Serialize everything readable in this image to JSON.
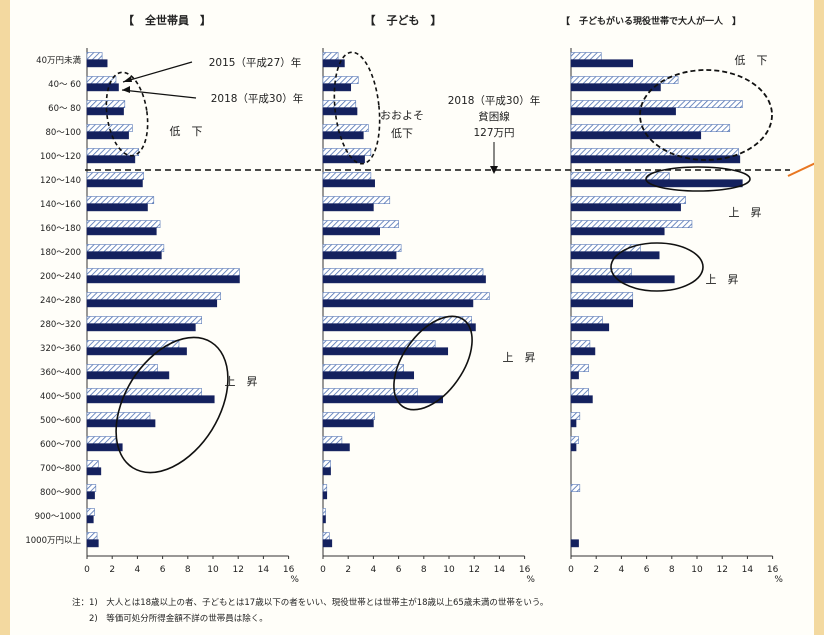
{
  "chart_data": {
    "type": "bar",
    "orientation": "horizontal",
    "categories": [
      "40万円未満",
      "40～ 60",
      "60～ 80",
      "80～100",
      "100～120",
      "120～140",
      "140～160",
      "160～180",
      "180～200",
      "200～240",
      "240～280",
      "280～320",
      "320～360",
      "360～400",
      "400～500",
      "500～600",
      "600～700",
      "700～800",
      "800～900",
      "900～1000",
      "1000万円以上"
    ],
    "xlim": [
      0,
      16
    ],
    "xticks": [
      0,
      2,
      4,
      6,
      8,
      10,
      12,
      14,
      16
    ],
    "unit": "%",
    "series_style": {
      "2015": "hatched light-blue",
      "2018": "solid navy"
    },
    "colors": {
      "navy": "#14215e",
      "hatch": "#4c6fb0",
      "hatch_bg": "#ffffff"
    },
    "panels": [
      {
        "title": "【　全世帯員　】",
        "series": [
          {
            "name": "2015（平成27）年",
            "values": [
              1.2,
              2.3,
              3.0,
              3.6,
              4.1,
              4.5,
              5.3,
              5.8,
              6.1,
              12.1,
              10.6,
              9.1,
              7.3,
              5.6,
              9.1,
              5.0,
              2.3,
              0.9,
              0.7,
              0.6,
              0.8
            ]
          },
          {
            "name": "2018（平成30）年",
            "values": [
              1.6,
              2.5,
              2.9,
              3.3,
              3.8,
              4.4,
              4.8,
              5.5,
              5.9,
              12.1,
              10.3,
              8.6,
              7.9,
              6.5,
              10.1,
              5.4,
              2.8,
              1.1,
              0.6,
              0.5,
              0.9
            ]
          }
        ],
        "annotations": [
          "低　下",
          "上　昇"
        ]
      },
      {
        "title": "【　子ども　】",
        "series": [
          {
            "name": "2015（平成27）年",
            "values": [
              1.2,
              2.8,
              2.6,
              3.6,
              3.8,
              3.8,
              5.3,
              6.0,
              6.2,
              12.7,
              13.2,
              11.8,
              8.9,
              6.4,
              7.5,
              4.1,
              1.5,
              0.6,
              0.3,
              0.2,
              0.5
            ]
          },
          {
            "name": "2018（平成30）年",
            "values": [
              1.7,
              2.2,
              2.7,
              3.2,
              3.3,
              4.1,
              4.0,
              4.5,
              5.8,
              12.9,
              11.9,
              12.1,
              9.9,
              7.2,
              9.5,
              4.0,
              2.1,
              0.6,
              0.3,
              0.2,
              0.7
            ]
          }
        ],
        "annotations": [
          "おおよそ\n低下",
          "上　昇",
          "2018（平成30）年",
          "貧困線",
          "127万円"
        ]
      },
      {
        "title": "【　子どもがいる現役世帯で大人が一人　】",
        "series": [
          {
            "name": "2015（平成27）年",
            "values": [
              2.4,
              8.5,
              13.6,
              12.6,
              13.3,
              7.8,
              9.1,
              9.6,
              5.5,
              4.8,
              4.9,
              2.5,
              1.5,
              1.4,
              1.4,
              0.7,
              0.6,
              0.0,
              0.7,
              0.0,
              0.0
            ]
          },
          {
            "name": "2018（平成30）年",
            "values": [
              4.9,
              7.1,
              8.3,
              10.3,
              13.4,
              13.6,
              8.7,
              7.4,
              7.0,
              8.2,
              4.9,
              3.0,
              1.9,
              0.6,
              1.7,
              0.4,
              0.4,
              0.0,
              0.0,
              0.0,
              0.6
            ]
          }
        ],
        "annotations": [
          "低　下",
          "上　昇",
          "上　昇"
        ]
      }
    ],
    "legend": [
      "2015（平成27）年",
      "2018（平成30）年"
    ],
    "poverty_line_label": "貧困線"
  },
  "notes": [
    "注：1)　大人とは18歳以上の者、子どもとは17歳以下の者をいい、現役世帯とは世帯主が18歳以上65歳未満の世帯をいう。",
    "　　2)　等価可処分所得金額不詳の世帯員は除く。"
  ]
}
